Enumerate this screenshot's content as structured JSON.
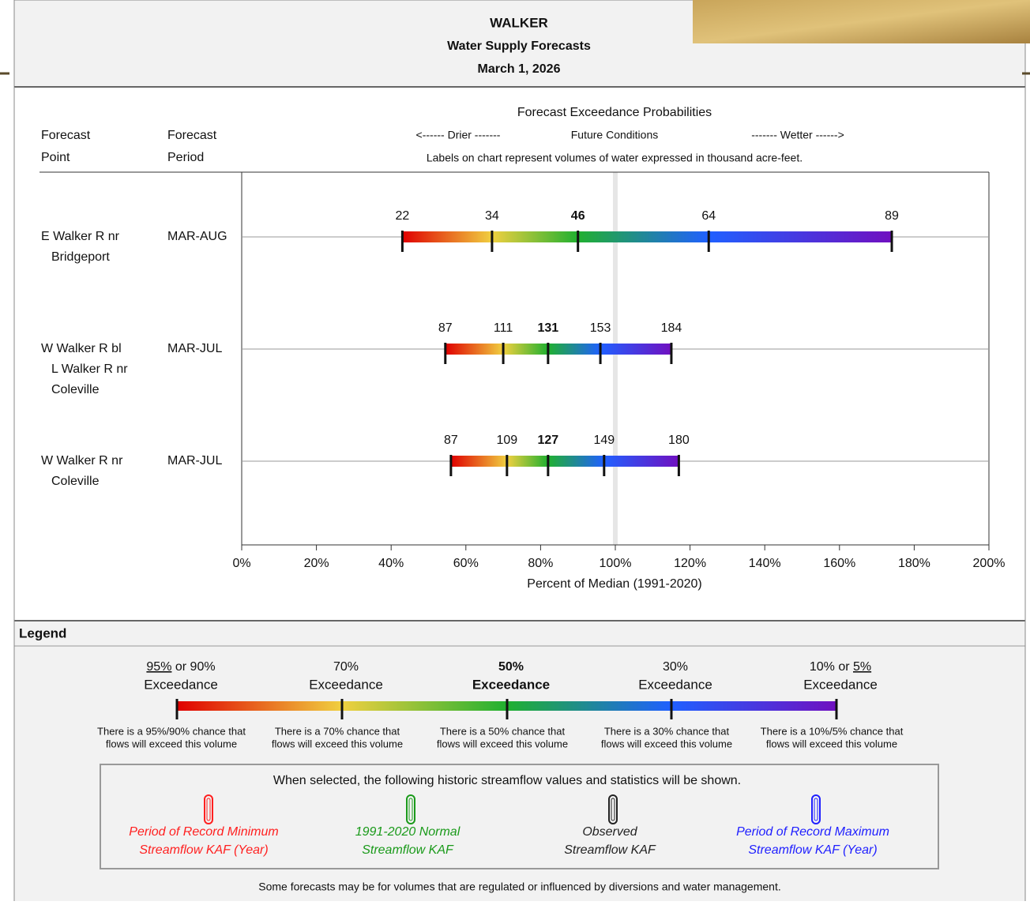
{
  "header": {
    "title": "WALKER",
    "subtitle": "Water Supply Forecasts",
    "date": "March 1, 2026"
  },
  "chart_data": {
    "type": "range_bar",
    "title": "Forecast Exceedance Probabilities",
    "direction": [
      "<------ Drier -------",
      "Future Conditions",
      "------- Wetter ------>"
    ],
    "note": "Labels on chart represent volumes of water expressed in thousand acre-feet.",
    "column_headers": [
      [
        "Forecast",
        "Point"
      ],
      [
        "Forecast",
        "Period"
      ]
    ],
    "rows": [
      {
        "point": [
          "E Walker R nr",
          "Bridgeport"
        ],
        "period": "MAR-AUG",
        "percent": [
          43,
          67,
          90,
          125,
          174
        ],
        "volumes": [
          22,
          34,
          46,
          64,
          89
        ]
      },
      {
        "point": [
          "W Walker R bl",
          "L Walker R nr",
          "Coleville"
        ],
        "period": "MAR-JUL",
        "percent": [
          54.5,
          70,
          82,
          96,
          115
        ],
        "volumes": [
          87,
          111,
          131,
          153,
          184
        ]
      },
      {
        "point": [
          "W Walker R nr",
          "Coleville"
        ],
        "period": "MAR-JUL",
        "percent": [
          56,
          71,
          82,
          97,
          117
        ],
        "volumes": [
          87,
          109,
          127,
          149,
          180
        ]
      }
    ],
    "colors": [
      "#e00000",
      "#f0d040",
      "#20b030",
      "#2060ff",
      "#7010c0"
    ],
    "xlim": [
      0,
      200
    ],
    "xticks": [
      {
        "value": 0,
        "label": "0%"
      },
      {
        "value": 20,
        "label": "20%"
      },
      {
        "value": 40,
        "label": "40%"
      },
      {
        "value": 60,
        "label": "60%"
      },
      {
        "value": 80,
        "label": "80%"
      },
      {
        "value": 100,
        "label": "100%"
      },
      {
        "value": 120,
        "label": "120%"
      },
      {
        "value": 140,
        "label": "140%"
      },
      {
        "value": 160,
        "label": "160%"
      },
      {
        "value": 180,
        "label": "180%"
      },
      {
        "value": 200,
        "label": "200%"
      }
    ],
    "xlabel": "Percent of Median (1991-2020)",
    "reference_line": 100
  },
  "legend": {
    "title": "Legend",
    "items": [
      {
        "label": [
          {
            "text": "95%",
            "underline": true
          },
          {
            "text": " or 90%"
          }
        ],
        "sub": "Exceedance",
        "desc": [
          "There is a 95%/90% chance that",
          "flows will exceed this volume"
        ]
      },
      {
        "label": [
          {
            "text": "70%"
          }
        ],
        "sub": "Exceedance",
        "desc": [
          "There is a 70% chance that",
          "flows will exceed this volume"
        ]
      },
      {
        "label": [
          {
            "text": "50%"
          }
        ],
        "sub": "Exceedance",
        "bold": true,
        "desc": [
          "There is a 50% chance that",
          "flows will exceed this volume"
        ]
      },
      {
        "label": [
          {
            "text": "30%"
          }
        ],
        "sub": "Exceedance",
        "desc": [
          "There is a 30% chance that",
          "flows will exceed this volume"
        ]
      },
      {
        "label": [
          {
            "text": "10% or "
          },
          {
            "text": "5%",
            "underline": true
          }
        ],
        "sub": "Exceedance",
        "desc": [
          "There is a 10%/5% chance that",
          "flows will exceed this volume"
        ]
      }
    ],
    "historic_intro": "When selected, the following historic streamflow values and statistics will be shown.",
    "historic_items": [
      {
        "lines": [
          "Period of Record Minimum",
          "Streamflow KAF (Year)"
        ],
        "color": "#ff2020"
      },
      {
        "lines": [
          "1991-2020 Normal",
          "Streamflow KAF"
        ],
        "color": "#1a9a1a"
      },
      {
        "lines": [
          "Observed",
          "Streamflow KAF"
        ],
        "color": "#222222"
      },
      {
        "lines": [
          "Period of Record Maximum",
          "Streamflow KAF (Year)"
        ],
        "color": "#2020ff"
      }
    ],
    "footer": "Some forecasts may be for volumes that are regulated or influenced by diversions and water management."
  }
}
